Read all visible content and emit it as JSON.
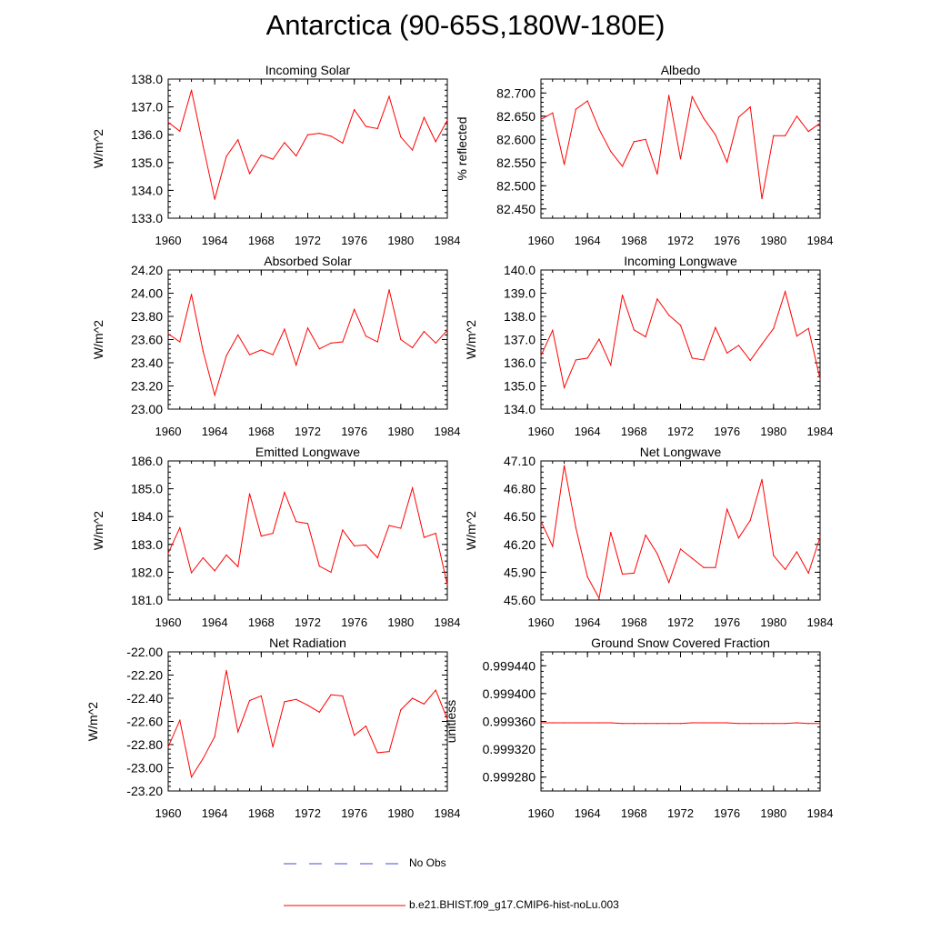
{
  "title": "Antarctica (90-65S,180W-180E)",
  "series_color": "#ff0000",
  "obs_color": "#4a4ad8",
  "legend": {
    "obs_label": "No Obs",
    "model_label": "b.e21.BHIST.f09_g17.CMIP6-hist-noLu.003"
  },
  "chart_data": [
    {
      "type": "line",
      "title": "Incoming Solar",
      "ylabel": "W/m^2",
      "xlabel": "",
      "xlim": [
        1960,
        1984
      ],
      "ylim": [
        133.0,
        138.0
      ],
      "xticks": [
        1960,
        1964,
        1968,
        1972,
        1976,
        1980,
        1984
      ],
      "xtick_labels": [
        "1960",
        "1964",
        "1968",
        "1972",
        "1976",
        "1980",
        "1984"
      ],
      "yticks": [
        133.0,
        134.0,
        135.0,
        136.0,
        137.0,
        138.0
      ],
      "ytick_labels": [
        "133.0",
        "134.0",
        "135.0",
        "136.0",
        "137.0",
        "138.0"
      ],
      "x": [
        1960,
        1961,
        1962,
        1963,
        1964,
        1965,
        1966,
        1967,
        1968,
        1969,
        1970,
        1971,
        1972,
        1973,
        1974,
        1975,
        1976,
        1977,
        1978,
        1979,
        1980,
        1981,
        1982,
        1983,
        1984
      ],
      "series": [
        {
          "name": "b.e21.BHIST.f09_g17.CMIP6-hist-noLu.003",
          "values": [
            136.45,
            136.13,
            137.6,
            135.6,
            133.68,
            135.22,
            135.82,
            134.6,
            135.27,
            135.12,
            135.72,
            135.24,
            136.0,
            136.05,
            135.95,
            135.7,
            136.9,
            136.3,
            136.22,
            137.38,
            135.92,
            135.45,
            136.62,
            135.75,
            136.52
          ]
        }
      ]
    },
    {
      "type": "line",
      "title": "Albedo",
      "ylabel": "% reflected",
      "xlabel": "",
      "xlim": [
        1960,
        1984
      ],
      "ylim": [
        82.43,
        82.73
      ],
      "xticks": [
        1960,
        1964,
        1968,
        1972,
        1976,
        1980,
        1984
      ],
      "xtick_labels": [
        "1960",
        "1964",
        "1968",
        "1972",
        "1976",
        "1980",
        "1984"
      ],
      "yticks": [
        82.45,
        82.5,
        82.55,
        82.6,
        82.65,
        82.7
      ],
      "ytick_labels": [
        "82.450",
        "82.500",
        "82.550",
        "82.600",
        "82.650",
        "82.700"
      ],
      "x": [
        1960,
        1961,
        1962,
        1963,
        1964,
        1965,
        1966,
        1967,
        1968,
        1969,
        1970,
        1971,
        1972,
        1973,
        1974,
        1975,
        1976,
        1977,
        1978,
        1979,
        1980,
        1981,
        1982,
        1983,
        1984
      ],
      "series": [
        {
          "name": "b.e21.BHIST.f09_g17.CMIP6-hist-noLu.003",
          "values": [
            82.643,
            82.657,
            82.546,
            82.665,
            82.683,
            82.622,
            82.574,
            82.542,
            82.595,
            82.6,
            82.525,
            82.695,
            82.558,
            82.692,
            82.645,
            82.61,
            82.551,
            82.648,
            82.67,
            82.472,
            82.608,
            82.608,
            82.65,
            82.617,
            82.635
          ]
        }
      ]
    },
    {
      "type": "line",
      "title": "Absorbed Solar",
      "ylabel": "W/m^2",
      "xlabel": "",
      "xlim": [
        1960,
        1984
      ],
      "ylim": [
        23.0,
        24.2
      ],
      "xticks": [
        1960,
        1964,
        1968,
        1972,
        1976,
        1980,
        1984
      ],
      "xtick_labels": [
        "1960",
        "1964",
        "1968",
        "1972",
        "1976",
        "1980",
        "1984"
      ],
      "yticks": [
        23.0,
        23.2,
        23.4,
        23.6,
        23.8,
        24.0,
        24.2
      ],
      "ytick_labels": [
        "23.00",
        "23.20",
        "23.40",
        "23.60",
        "23.80",
        "24.00",
        "24.20"
      ],
      "x": [
        1960,
        1961,
        1962,
        1963,
        1964,
        1965,
        1966,
        1967,
        1968,
        1969,
        1970,
        1971,
        1972,
        1973,
        1974,
        1975,
        1976,
        1977,
        1978,
        1979,
        1980,
        1981,
        1982,
        1983,
        1984
      ],
      "series": [
        {
          "name": "b.e21.BHIST.f09_g17.CMIP6-hist-noLu.003",
          "values": [
            23.65,
            23.58,
            23.99,
            23.5,
            23.12,
            23.46,
            23.64,
            23.47,
            23.51,
            23.47,
            23.69,
            23.38,
            23.7,
            23.52,
            23.57,
            23.58,
            23.86,
            23.63,
            23.58,
            24.03,
            23.6,
            23.53,
            23.67,
            23.57,
            23.68
          ]
        }
      ]
    },
    {
      "type": "line",
      "title": "Incoming Longwave",
      "ylabel": "W/m^2",
      "xlabel": "",
      "xlim": [
        1960,
        1984
      ],
      "ylim": [
        134.0,
        140.0
      ],
      "xticks": [
        1960,
        1964,
        1968,
        1972,
        1976,
        1980,
        1984
      ],
      "xtick_labels": [
        "1960",
        "1964",
        "1968",
        "1972",
        "1976",
        "1980",
        "1984"
      ],
      "yticks": [
        134.0,
        135.0,
        136.0,
        137.0,
        138.0,
        139.0,
        140.0
      ],
      "ytick_labels": [
        "134.0",
        "135.0",
        "136.0",
        "137.0",
        "138.0",
        "139.0",
        "140.0"
      ],
      "x": [
        1960,
        1961,
        1962,
        1963,
        1964,
        1965,
        1966,
        1967,
        1968,
        1969,
        1970,
        1971,
        1972,
        1973,
        1974,
        1975,
        1976,
        1977,
        1978,
        1979,
        1980,
        1981,
        1982,
        1983,
        1984
      ],
      "series": [
        {
          "name": "b.e21.BHIST.f09_g17.CMIP6-hist-noLu.003",
          "values": [
            136.3,
            137.4,
            134.93,
            136.12,
            136.2,
            137.02,
            135.9,
            138.92,
            137.42,
            137.12,
            138.75,
            138.05,
            137.62,
            136.2,
            136.12,
            137.52,
            136.42,
            136.75,
            136.1,
            136.8,
            137.48,
            139.07,
            137.15,
            137.48,
            135.3
          ]
        }
      ]
    },
    {
      "type": "line",
      "title": "Emitted Longwave",
      "ylabel": "W/m^2",
      "xlabel": "",
      "xlim": [
        1960,
        1984
      ],
      "ylim": [
        181.0,
        186.0
      ],
      "xticks": [
        1960,
        1964,
        1968,
        1972,
        1976,
        1980,
        1984
      ],
      "xtick_labels": [
        "1960",
        "1964",
        "1968",
        "1972",
        "1976",
        "1980",
        "1984"
      ],
      "yticks": [
        181.0,
        182.0,
        183.0,
        184.0,
        185.0,
        186.0
      ],
      "ytick_labels": [
        "181.0",
        "182.0",
        "183.0",
        "184.0",
        "185.0",
        "186.0"
      ],
      "x": [
        1960,
        1961,
        1962,
        1963,
        1964,
        1965,
        1966,
        1967,
        1968,
        1969,
        1970,
        1971,
        1972,
        1973,
        1974,
        1975,
        1976,
        1977,
        1978,
        1979,
        1980,
        1981,
        1982,
        1983,
        1984
      ],
      "series": [
        {
          "name": "b.e21.BHIST.f09_g17.CMIP6-hist-noLu.003",
          "values": [
            182.68,
            183.6,
            181.98,
            182.52,
            182.05,
            182.62,
            182.2,
            184.82,
            183.3,
            183.4,
            184.87,
            183.82,
            183.75,
            182.22,
            182.0,
            183.52,
            182.95,
            182.98,
            182.52,
            183.68,
            183.58,
            185.03,
            183.25,
            183.4,
            181.55
          ]
        }
      ]
    },
    {
      "type": "line",
      "title": "Net Longwave",
      "ylabel": "W/m^2",
      "xlabel": "",
      "xlim": [
        1960,
        1984
      ],
      "ylim": [
        45.6,
        47.1
      ],
      "xticks": [
        1960,
        1964,
        1968,
        1972,
        1976,
        1980,
        1984
      ],
      "xtick_labels": [
        "1960",
        "1964",
        "1968",
        "1972",
        "1976",
        "1980",
        "1984"
      ],
      "yticks": [
        45.6,
        45.9,
        46.2,
        46.5,
        46.8,
        47.1
      ],
      "ytick_labels": [
        "45.60",
        "45.90",
        "46.20",
        "46.50",
        "46.80",
        "47.10"
      ],
      "x": [
        1960,
        1961,
        1962,
        1963,
        1964,
        1965,
        1966,
        1967,
        1968,
        1969,
        1970,
        1971,
        1972,
        1973,
        1974,
        1975,
        1976,
        1977,
        1978,
        1979,
        1980,
        1981,
        1982,
        1983,
        1984
      ],
      "series": [
        {
          "name": "b.e21.BHIST.f09_g17.CMIP6-hist-noLu.003",
          "values": [
            46.45,
            46.18,
            47.05,
            46.38,
            45.85,
            45.62,
            46.33,
            45.88,
            45.89,
            46.3,
            46.1,
            45.79,
            46.15,
            46.05,
            45.95,
            45.95,
            46.58,
            46.27,
            46.46,
            46.9,
            46.08,
            45.93,
            46.12,
            45.89,
            46.28
          ]
        }
      ]
    },
    {
      "type": "line",
      "title": "Net Radiation",
      "ylabel": "W/m^2",
      "xlabel": "",
      "xlim": [
        1960,
        1984
      ],
      "ylim": [
        -23.2,
        -22.0
      ],
      "xticks": [
        1960,
        1964,
        1968,
        1972,
        1976,
        1980,
        1984
      ],
      "xtick_labels": [
        "1960",
        "1964",
        "1968",
        "1972",
        "1976",
        "1980",
        "1984"
      ],
      "yticks": [
        -23.2,
        -23.0,
        -22.8,
        -22.6,
        -22.4,
        -22.2,
        -22.0
      ],
      "ytick_labels": [
        "-23.20",
        "-23.00",
        "-22.80",
        "-22.60",
        "-22.40",
        "-22.20",
        "-22.00"
      ],
      "x": [
        1960,
        1961,
        1962,
        1963,
        1964,
        1965,
        1966,
        1967,
        1968,
        1969,
        1970,
        1971,
        1972,
        1973,
        1974,
        1975,
        1976,
        1977,
        1978,
        1979,
        1980,
        1981,
        1982,
        1983,
        1984
      ],
      "series": [
        {
          "name": "b.e21.BHIST.f09_g17.CMIP6-hist-noLu.003",
          "values": [
            -22.82,
            -22.59,
            -23.08,
            -22.92,
            -22.73,
            -22.16,
            -22.69,
            -22.42,
            -22.38,
            -22.82,
            -22.43,
            -22.41,
            -22.46,
            -22.52,
            -22.37,
            -22.38,
            -22.72,
            -22.64,
            -22.87,
            -22.86,
            -22.5,
            -22.4,
            -22.45,
            -22.33,
            -22.58
          ]
        }
      ]
    },
    {
      "type": "line",
      "title": "Ground Snow Covered Fraction",
      "ylabel": "unitless",
      "xlabel": "",
      "xlim": [
        1960,
        1984
      ],
      "ylim": [
        0.99926,
        0.99946
      ],
      "xticks": [
        1960,
        1964,
        1968,
        1972,
        1976,
        1980,
        1984
      ],
      "xtick_labels": [
        "1960",
        "1964",
        "1968",
        "1972",
        "1976",
        "1980",
        "1984"
      ],
      "yticks": [
        0.99928,
        0.99932,
        0.99936,
        0.9994,
        0.99944
      ],
      "ytick_labels": [
        "0.999280",
        "0.999320",
        "0.999360",
        "0.999400",
        "0.999440"
      ],
      "x": [
        1960,
        1961,
        1962,
        1963,
        1964,
        1965,
        1966,
        1967,
        1968,
        1969,
        1970,
        1971,
        1972,
        1973,
        1974,
        1975,
        1976,
        1977,
        1978,
        1979,
        1980,
        1981,
        1982,
        1983,
        1984
      ],
      "series": [
        {
          "name": "b.e21.BHIST.f09_g17.CMIP6-hist-noLu.003",
          "values": [
            0.999358,
            0.999358,
            0.999358,
            0.999358,
            0.999358,
            0.999358,
            0.999358,
            0.999357,
            0.999357,
            0.999357,
            0.999357,
            0.999357,
            0.999357,
            0.999358,
            0.999358,
            0.999358,
            0.999358,
            0.999357,
            0.999357,
            0.999357,
            0.999357,
            0.999357,
            0.999358,
            0.999357,
            0.999357
          ]
        }
      ]
    }
  ]
}
